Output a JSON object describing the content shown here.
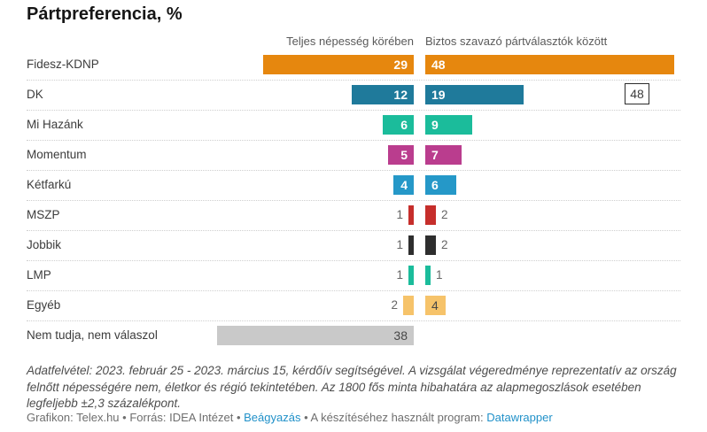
{
  "title": "Pártpreferencia, %",
  "chart_data": {
    "type": "bar",
    "title": "Pártpreferencia, %",
    "unit": "%",
    "orientation": "horizontal",
    "axis_visible": false,
    "categories": [
      "Fidesz-KDNP",
      "DK",
      "Mi Hazánk",
      "Momentum",
      "Kétfarkú",
      "MSZP",
      "Jobbik",
      "LMP",
      "Egyéb",
      "Nem tudja, nem válaszol"
    ],
    "series": [
      {
        "name": "Teljes népesség körében",
        "values": [
          29,
          12,
          6,
          5,
          4,
          1,
          1,
          1,
          2,
          38
        ]
      },
      {
        "name": "Biztos szavazó pártválasztók között",
        "values": [
          48,
          19,
          9,
          7,
          6,
          2,
          2,
          1,
          4,
          null
        ]
      }
    ],
    "colors": [
      "#E6870E",
      "#1F7A9B",
      "#1BBC9B",
      "#BA3D8E",
      "#2598C8",
      "#C62E2B",
      "#2E2E2E",
      "#1BBC9B",
      "#F6C36A",
      "#C9C9C9"
    ],
    "value_label_style": [
      [
        "inside-light",
        "inside-light"
      ],
      [
        "inside-light",
        "inside-light"
      ],
      [
        "inside-light",
        "inside-light"
      ],
      [
        "inside-light",
        "inside-light"
      ],
      [
        "inside-light",
        "inside-light"
      ],
      [
        "outside",
        "outside"
      ],
      [
        "outside",
        "outside"
      ],
      [
        "outside",
        "outside"
      ],
      [
        "outside",
        "inside-dark"
      ],
      [
        "inside-dark",
        null
      ]
    ],
    "xlim": [
      0,
      48
    ],
    "annotation": {
      "text": "48",
      "row": "DK"
    }
  },
  "notes": "Adatfelvétel: 2023. február 25 - 2023. március 15, kérdőív segítségével. A vizsgálat végeredménye reprezentatív az ország felnőtt népességére nem, életkor és régió tekintetében. Az 1800 fős minta hibahatára az alapmegoszlások esetében legfeljebb ±2,3 százalékpont.",
  "credits": {
    "prefix": "Grafikon: Telex.hu • Forrás: IDEA Intézet • ",
    "embed_link": "Beágyazás",
    "middle": " • A készítéséhez használt program: ",
    "tool_link": "Datawrapper"
  }
}
